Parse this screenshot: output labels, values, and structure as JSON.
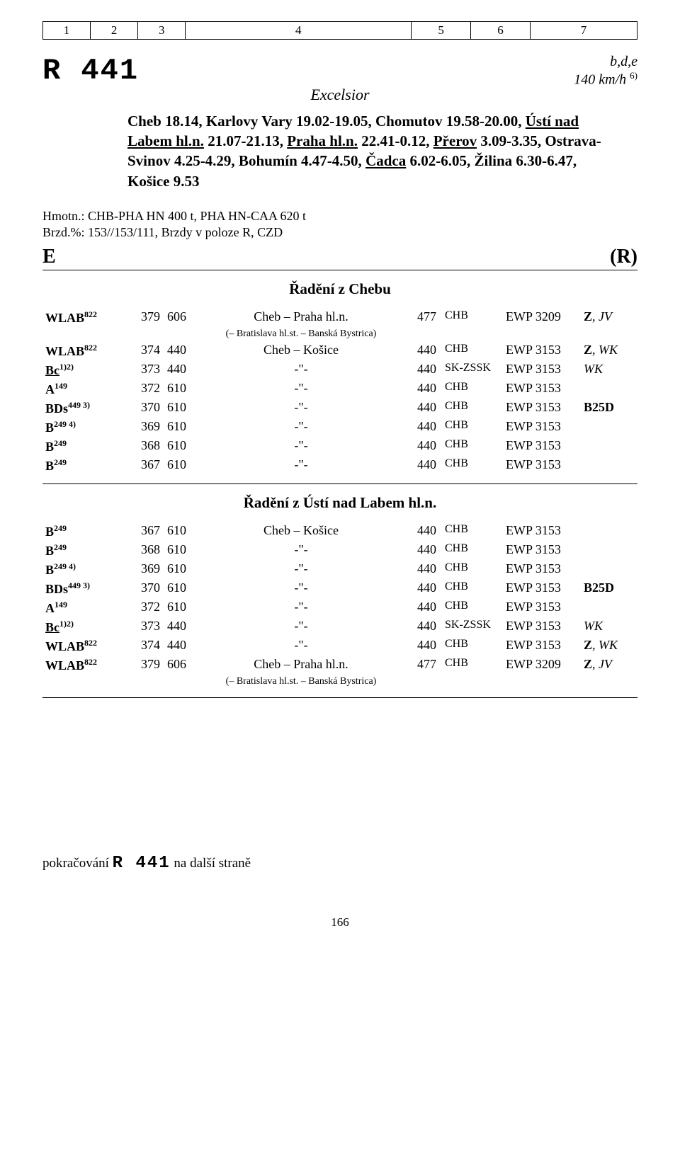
{
  "header_cols": [
    "1",
    "2",
    "3",
    "4",
    "5",
    "6",
    "7"
  ],
  "header_widths": [
    "8%",
    "8%",
    "8%",
    "38%",
    "10%",
    "10%",
    "18%"
  ],
  "train_id": "R 441",
  "flags": "b,d,e",
  "speed": "140 km/h",
  "speed_note": "6)",
  "train_name": "Excelsior",
  "route_text_parts": [
    {
      "t": "Cheb 18.14, Karlovy Vary 19.02-19.05, Chomutov 19.58-20.00, "
    },
    {
      "t": "Ústí nad Labem hl.n.",
      "u": true
    },
    {
      "t": " 21.07-21.13, "
    },
    {
      "t": "Praha hl.n.",
      "u": true
    },
    {
      "t": " 22.41-0.12, "
    },
    {
      "t": "Přerov",
      "u": true
    },
    {
      "t": " 3.09-3.35, Ostrava-Svinov 4.25-4.29, Bohumín 4.47-4.50, "
    },
    {
      "t": "Čadca",
      "u": true
    },
    {
      "t": " 6.02-6.05, Žilina 6.30-6.47, Košice 9.53"
    }
  ],
  "meta": {
    "hmotn": "Hmotn.: CHB-PHA HN 400 t, PHA HN-CAA 620 t",
    "brzd": "Brzd.%: 153//153/111, Brzdy v poloze R, CZD"
  },
  "e_label": "E",
  "r_label": "(R)",
  "section1_title": "Řadění z Chebu",
  "section2_title": "Řadění z Ústí nad Labem hl.n.",
  "formation1": [
    {
      "type": "WLAB",
      "sup": "822",
      "n1": "379",
      "n2": "606",
      "route": "Cheb – Praha hl.n.",
      "sub": "(– Bratislava hl.st. – Banská Bystrica)",
      "n3": "477",
      "adm": "CHB",
      "code": "EWP 3209",
      "tags": "Z, JV",
      "tags_it": "JV",
      "tags_b": "Z"
    },
    {
      "type": "WLAB",
      "sup": "822",
      "n1": "374",
      "n2": "440",
      "route": "Cheb – Košice",
      "n3": "440",
      "adm": "CHB",
      "code": "EWP 3153",
      "tags": "Z, WK",
      "tags_it": "WK",
      "tags_b": "Z"
    },
    {
      "type": "Bc",
      "type_u": true,
      "sup": "1)2)",
      "n1": "373",
      "n2": "440",
      "route": "-\"-",
      "n3": "440",
      "adm": "SK-ZSSK",
      "code": "EWP 3153",
      "tags": "WK",
      "tags_it": "WK"
    },
    {
      "type": "A",
      "sup": "149",
      "n1": "372",
      "n2": "610",
      "route": "-\"-",
      "n3": "440",
      "adm": "CHB",
      "code": "EWP 3153"
    },
    {
      "type": "BDs",
      "sup": "449 3)",
      "n1": "370",
      "n2": "610",
      "route": "-\"-",
      "n3": "440",
      "adm": "CHB",
      "code": "EWP 3153",
      "tags": "B25D",
      "tags_b": "B25D"
    },
    {
      "type": "B",
      "sup": "249 4)",
      "n1": "369",
      "n2": "610",
      "route": "-\"-",
      "n3": "440",
      "adm": "CHB",
      "code": "EWP 3153"
    },
    {
      "type": "B",
      "sup": "249",
      "n1": "368",
      "n2": "610",
      "route": "-\"-",
      "n3": "440",
      "adm": "CHB",
      "code": "EWP 3153"
    },
    {
      "type": "B",
      "sup": "249",
      "n1": "367",
      "n2": "610",
      "route": "-\"-",
      "n3": "440",
      "adm": "CHB",
      "code": "EWP 3153"
    }
  ],
  "formation2": [
    {
      "type": "B",
      "sup": "249",
      "n1": "367",
      "n2": "610",
      "route": "Cheb – Košice",
      "n3": "440",
      "adm": "CHB",
      "code": "EWP 3153"
    },
    {
      "type": "B",
      "sup": "249",
      "n1": "368",
      "n2": "610",
      "route": "-\"-",
      "n3": "440",
      "adm": "CHB",
      "code": "EWP 3153"
    },
    {
      "type": "B",
      "sup": "249 4)",
      "n1": "369",
      "n2": "610",
      "route": "-\"-",
      "n3": "440",
      "adm": "CHB",
      "code": "EWP 3153"
    },
    {
      "type": "BDs",
      "sup": "449 3)",
      "n1": "370",
      "n2": "610",
      "route": "-\"-",
      "n3": "440",
      "adm": "CHB",
      "code": "EWP 3153",
      "tags": "B25D",
      "tags_b": "B25D"
    },
    {
      "type": "A",
      "sup": "149",
      "n1": "372",
      "n2": "610",
      "route": "-\"-",
      "n3": "440",
      "adm": "CHB",
      "code": "EWP 3153"
    },
    {
      "type": "Bc",
      "type_u": true,
      "sup": "1)2)",
      "n1": "373",
      "n2": "440",
      "route": "-\"-",
      "n3": "440",
      "adm": "SK-ZSSK",
      "code": "EWP 3153",
      "tags": "WK",
      "tags_it": "WK"
    },
    {
      "type": "WLAB",
      "sup": "822",
      "n1": "374",
      "n2": "440",
      "route": "-\"-",
      "n3": "440",
      "adm": "CHB",
      "code": "EWP 3153",
      "tags": "Z, WK",
      "tags_it": "WK",
      "tags_b": "Z"
    },
    {
      "type": "WLAB",
      "sup": "822",
      "n1": "379",
      "n2": "606",
      "route": "Cheb – Praha hl.n.",
      "sub": "(– Bratislava hl.st. – Banská Bystrica)",
      "n3": "477",
      "adm": "CHB",
      "code": "EWP 3209",
      "tags": "Z, JV",
      "tags_it": "JV",
      "tags_b": "Z"
    }
  ],
  "continuation": {
    "prefix": "pokračování ",
    "train": "R 441",
    "suffix": " na další straně"
  },
  "page_number": "166"
}
